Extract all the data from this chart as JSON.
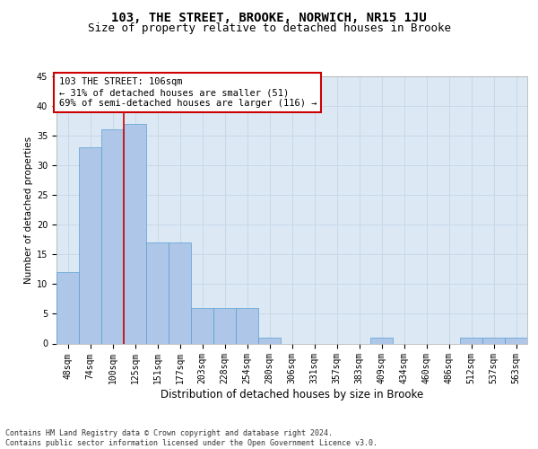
{
  "title": "103, THE STREET, BROOKE, NORWICH, NR15 1JU",
  "subtitle": "Size of property relative to detached houses in Brooke",
  "xlabel": "Distribution of detached houses by size in Brooke",
  "ylabel": "Number of detached properties",
  "categories": [
    "48sqm",
    "74sqm",
    "100sqm",
    "125sqm",
    "151sqm",
    "177sqm",
    "203sqm",
    "228sqm",
    "254sqm",
    "280sqm",
    "306sqm",
    "331sqm",
    "357sqm",
    "383sqm",
    "409sqm",
    "434sqm",
    "460sqm",
    "486sqm",
    "512sqm",
    "537sqm",
    "563sqm"
  ],
  "values": [
    12,
    33,
    36,
    37,
    17,
    17,
    6,
    6,
    6,
    1,
    0,
    0,
    0,
    0,
    1,
    0,
    0,
    0,
    1,
    1,
    1
  ],
  "bar_color": "#aec6e8",
  "bar_edge_color": "#5a9fd4",
  "grid_color": "#c8d8e8",
  "background_color": "#dce9f5",
  "property_line_x": 2.5,
  "annotation_text": "103 THE STREET: 106sqm\n← 31% of detached houses are smaller (51)\n69% of semi-detached houses are larger (116) →",
  "annotation_box_color": "#ffffff",
  "annotation_box_edge": "#cc0000",
  "annotation_line_color": "#cc0000",
  "ylim": [
    0,
    45
  ],
  "yticks": [
    0,
    5,
    10,
    15,
    20,
    25,
    30,
    35,
    40,
    45
  ],
  "footer_text": "Contains HM Land Registry data © Crown copyright and database right 2024.\nContains public sector information licensed under the Open Government Licence v3.0.",
  "title_fontsize": 10,
  "subtitle_fontsize": 9,
  "xlabel_fontsize": 8.5,
  "ylabel_fontsize": 7.5,
  "tick_fontsize": 7,
  "annotation_fontsize": 7.5,
  "footer_fontsize": 6
}
